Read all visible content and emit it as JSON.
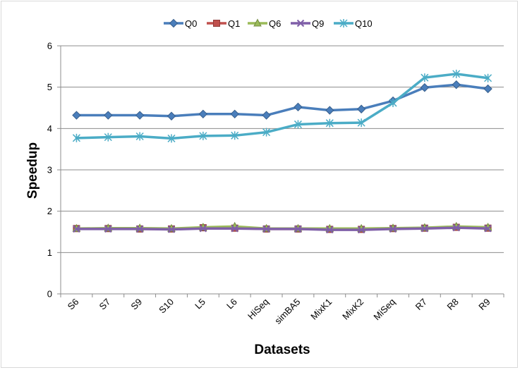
{
  "chart_data": {
    "type": "line",
    "title": "",
    "xlabel": "Datasets",
    "ylabel": "Speedup",
    "ylim": [
      0,
      6
    ],
    "yticks": [
      0,
      1,
      2,
      3,
      4,
      5,
      6
    ],
    "grid": "horizontal",
    "legend_position": "top",
    "categories": [
      "S6",
      "S7",
      "S9",
      "S10",
      "L5",
      "L6",
      "HiSeq",
      "simBA5",
      "MixK1",
      "MixK2",
      "MiSeq",
      "R7",
      "R8",
      "R9"
    ],
    "series": [
      {
        "name": "Q0",
        "color": "#4a7ebb",
        "marker": "diamond",
        "values": [
          4.32,
          4.32,
          4.32,
          4.3,
          4.35,
          4.35,
          4.32,
          4.52,
          4.44,
          4.47,
          4.67,
          4.99,
          5.06,
          4.96
        ]
      },
      {
        "name": "Q1",
        "color": "#c0504d",
        "marker": "square",
        "values": [
          1.58,
          1.58,
          1.57,
          1.57,
          1.6,
          1.59,
          1.57,
          1.57,
          1.56,
          1.56,
          1.58,
          1.59,
          1.61,
          1.59
        ]
      },
      {
        "name": "Q6",
        "color": "#9bbb59",
        "marker": "triangle",
        "values": [
          1.58,
          1.59,
          1.59,
          1.58,
          1.61,
          1.63,
          1.58,
          1.58,
          1.58,
          1.58,
          1.59,
          1.6,
          1.63,
          1.61
        ]
      },
      {
        "name": "Q9",
        "color": "#7f5fa8",
        "marker": "x",
        "values": [
          1.57,
          1.57,
          1.57,
          1.56,
          1.58,
          1.58,
          1.57,
          1.57,
          1.55,
          1.55,
          1.57,
          1.58,
          1.6,
          1.58
        ]
      },
      {
        "name": "Q10",
        "color": "#4bacc6",
        "marker": "star",
        "values": [
          3.77,
          3.79,
          3.81,
          3.76,
          3.82,
          3.83,
          3.91,
          4.1,
          4.13,
          4.14,
          4.62,
          5.23,
          5.32,
          5.22
        ]
      }
    ]
  }
}
